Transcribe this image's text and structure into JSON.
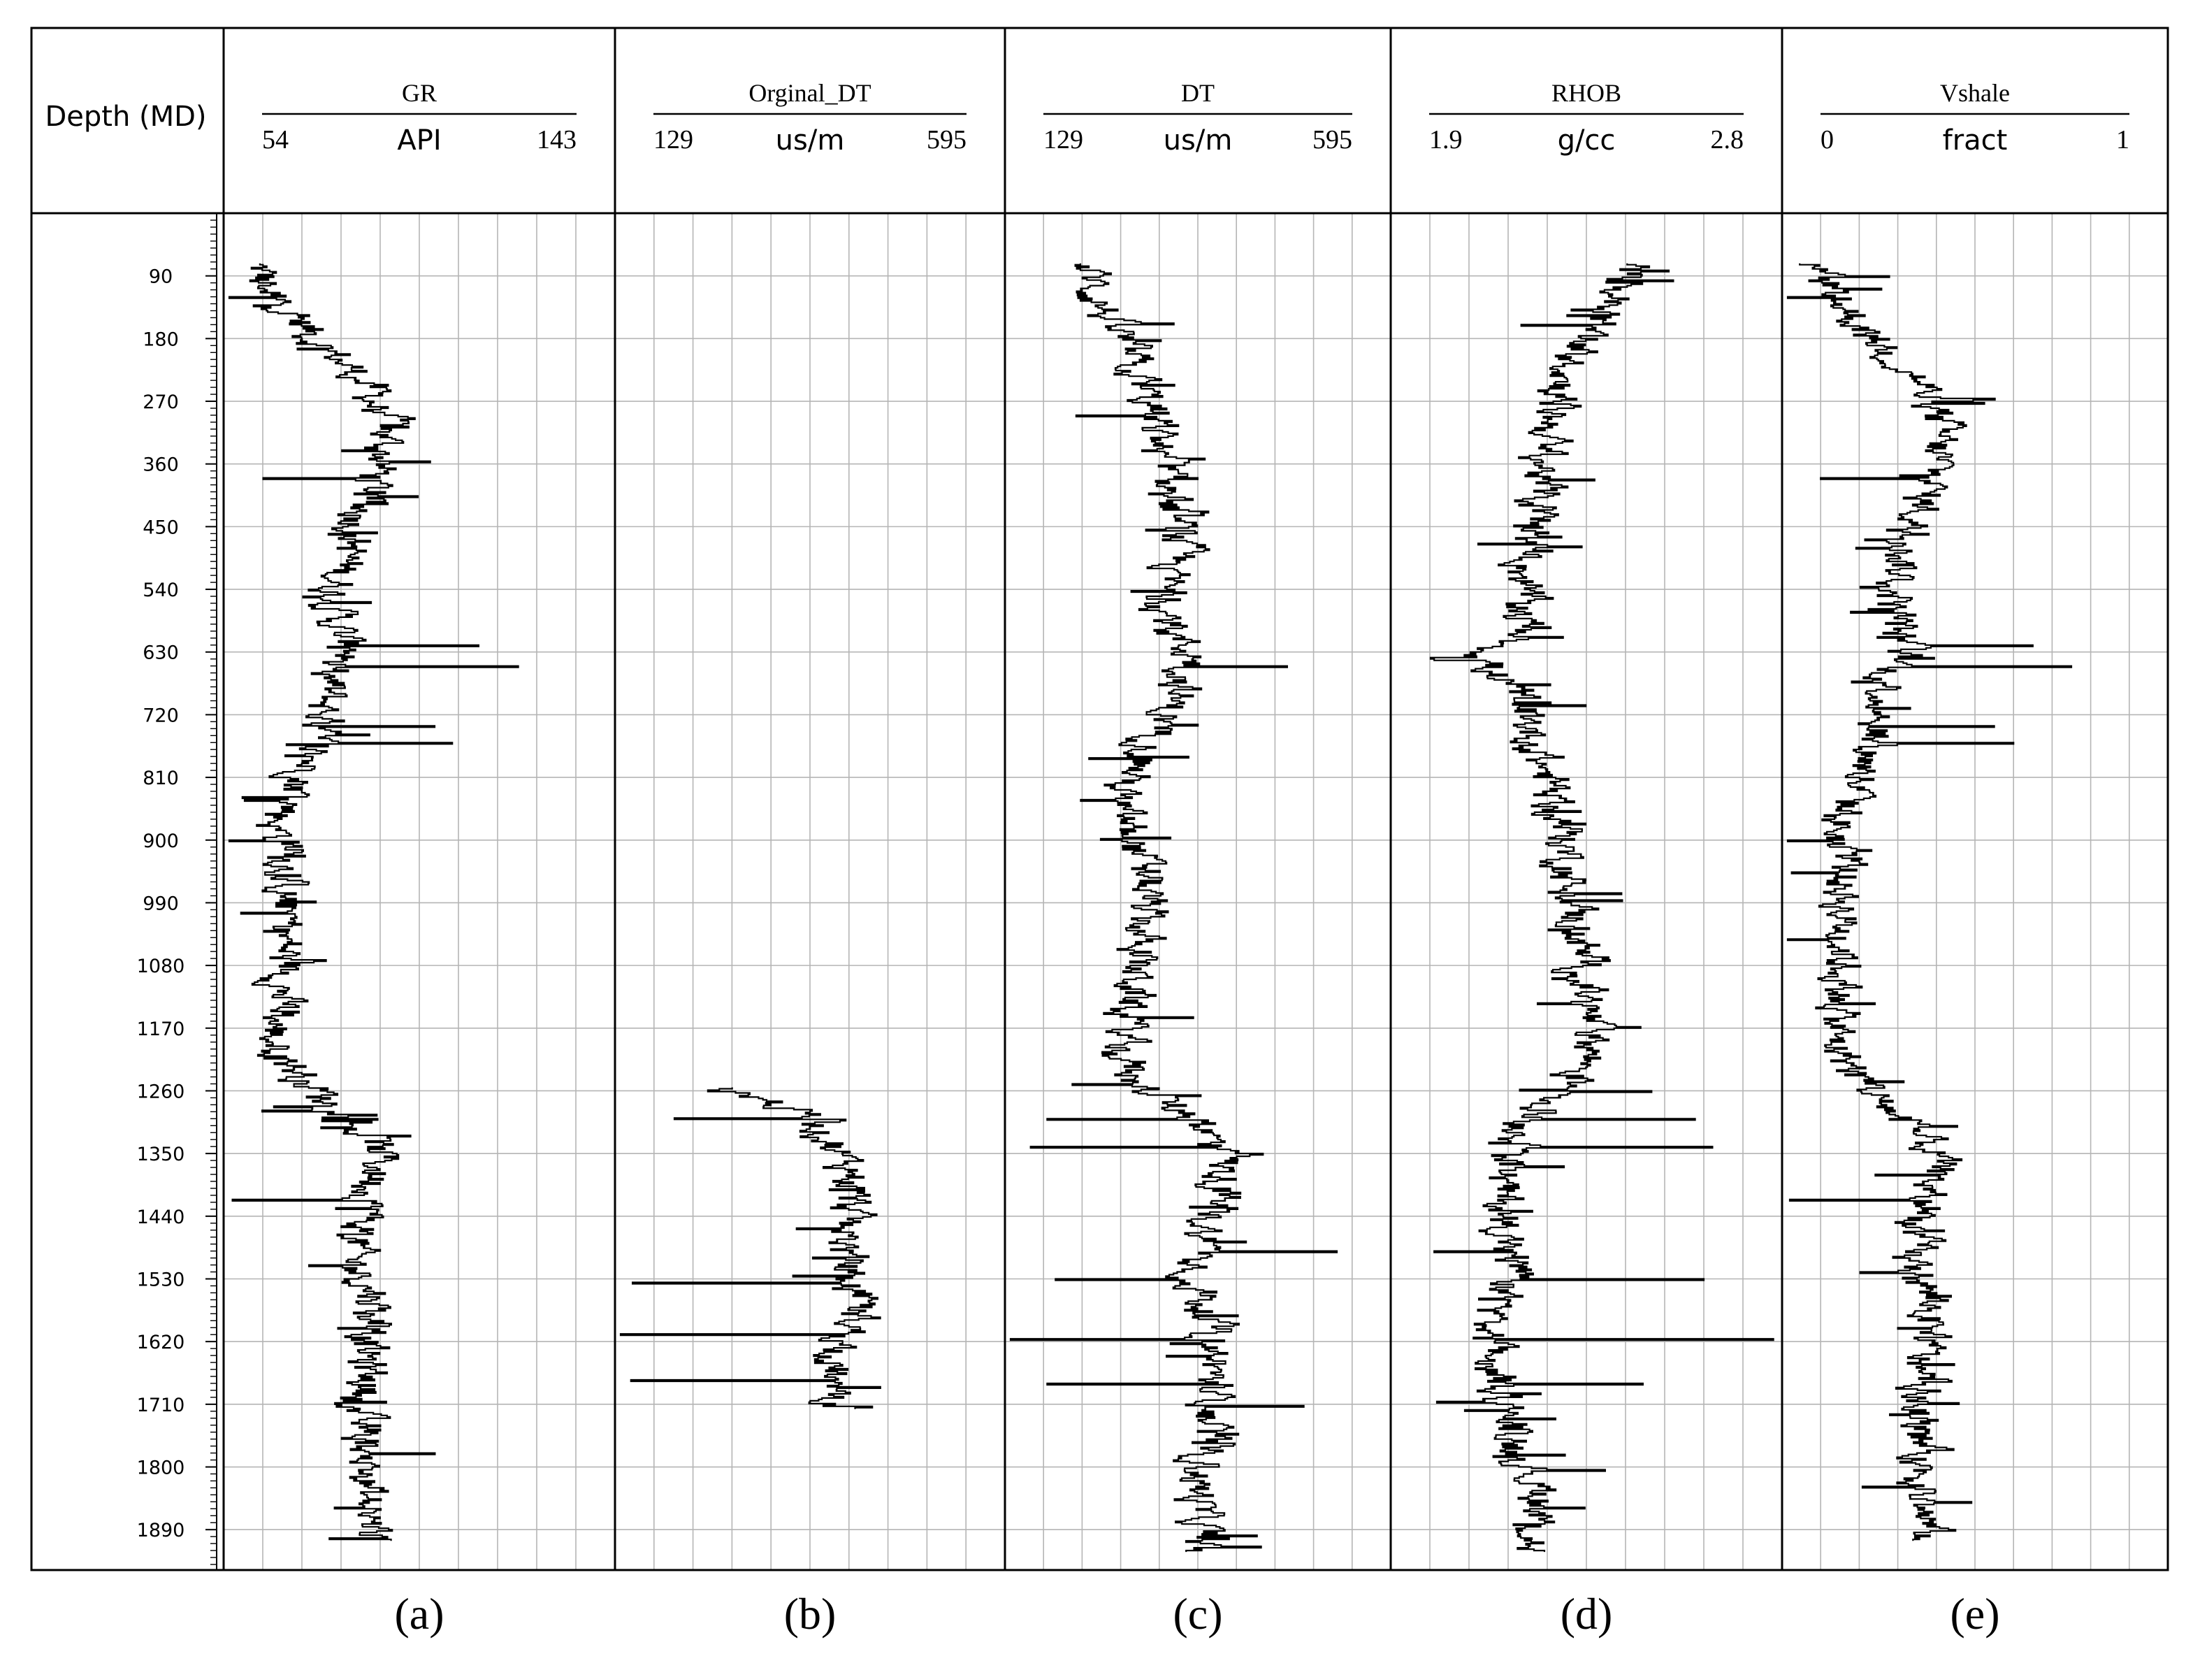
{
  "chart_data": {
    "type": "line",
    "depth_axis": {
      "title": "Depth (MD)",
      "ticks": [
        90,
        180,
        270,
        360,
        450,
        540,
        630,
        720,
        810,
        900,
        990,
        1080,
        1170,
        1260,
        1350,
        1440,
        1530,
        1620,
        1710,
        1800,
        1890
      ],
      "range": [
        0,
        1948
      ],
      "direction": "downward"
    },
    "grid": true,
    "tracks": [
      {
        "name": "GR",
        "unit": "API",
        "min": 54,
        "max": 143,
        "min_label": "54",
        "max_label": "143",
        "panel_label": "(a)",
        "depth_start": 72,
        "depth_end": 1904,
        "profile": [
          [
            72,
            61
          ],
          [
            120,
            66
          ],
          [
            180,
            75
          ],
          [
            240,
            86
          ],
          [
            300,
            91
          ],
          [
            360,
            90
          ],
          [
            420,
            86
          ],
          [
            480,
            83
          ],
          [
            540,
            79
          ],
          [
            600,
            80
          ],
          [
            630,
            82
          ],
          [
            660,
            78
          ],
          [
            720,
            77
          ],
          [
            780,
            74
          ],
          [
            840,
            70
          ],
          [
            880,
            66
          ],
          [
            920,
            69
          ],
          [
            960,
            68
          ],
          [
            1020,
            68
          ],
          [
            1080,
            68
          ],
          [
            1140,
            67
          ],
          [
            1180,
            65
          ],
          [
            1240,
            72
          ],
          [
            1300,
            82
          ],
          [
            1350,
            90
          ],
          [
            1400,
            88
          ],
          [
            1440,
            86
          ],
          [
            1500,
            83
          ],
          [
            1560,
            89
          ],
          [
            1620,
            86
          ],
          [
            1680,
            87
          ],
          [
            1720,
            84
          ],
          [
            1780,
            87
          ],
          [
            1850,
            86
          ],
          [
            1904,
            88
          ]
        ],
        "spikes": [
          [
            95,
            60
          ],
          [
            120,
            54
          ],
          [
            380,
            63
          ],
          [
            620,
            112
          ],
          [
            650,
            121
          ],
          [
            735,
            102
          ],
          [
            760,
            106
          ],
          [
            900,
            55
          ],
          [
            1415,
            56
          ],
          [
            1600,
            80
          ]
        ]
      },
      {
        "name": "Orginal_DT",
        "unit": "us/m",
        "min": 129,
        "max": 595,
        "min_label": "129",
        "max_label": "595",
        "panel_label": "(b)",
        "depth_start": 1255,
        "depth_end": 1715,
        "profile": [
          [
            1255,
            270
          ],
          [
            1300,
            370
          ],
          [
            1340,
            390
          ],
          [
            1380,
            415
          ],
          [
            1420,
            410
          ],
          [
            1460,
            405
          ],
          [
            1500,
            405
          ],
          [
            1540,
            410
          ],
          [
            1580,
            420
          ],
          [
            1620,
            405
          ],
          [
            1660,
            390
          ],
          [
            1700,
            390
          ],
          [
            1715,
            395
          ]
        ],
        "spikes": [
          [
            1300,
            200
          ],
          [
            1535,
            150
          ],
          [
            1610,
            135
          ],
          [
            1675,
            148
          ],
          [
            1260,
            240
          ]
        ]
      },
      {
        "name": "DT",
        "unit": "us/m",
        "min": 129,
        "max": 595,
        "min_label": "129",
        "max_label": "595",
        "panel_label": "(c)",
        "depth_start": 72,
        "depth_end": 1920,
        "profile": [
          [
            72,
            230
          ],
          [
            120,
            240
          ],
          [
            180,
            270
          ],
          [
            240,
            290
          ],
          [
            300,
            310
          ],
          [
            360,
            320
          ],
          [
            420,
            330
          ],
          [
            480,
            340
          ],
          [
            540,
            320
          ],
          [
            600,
            330
          ],
          [
            640,
            360
          ],
          [
            700,
            330
          ],
          [
            780,
            300
          ],
          [
            840,
            260
          ],
          [
            900,
            285
          ],
          [
            960,
            300
          ],
          [
            1020,
            295
          ],
          [
            1080,
            290
          ],
          [
            1140,
            280
          ],
          [
            1200,
            270
          ],
          [
            1255,
            295
          ],
          [
            1300,
            360
          ],
          [
            1350,
            390
          ],
          [
            1400,
            390
          ],
          [
            1460,
            370
          ],
          [
            1530,
            360
          ],
          [
            1600,
            380
          ],
          [
            1660,
            380
          ],
          [
            1720,
            380
          ],
          [
            1780,
            370
          ],
          [
            1840,
            360
          ],
          [
            1904,
            370
          ],
          [
            1920,
            365
          ]
        ],
        "spikes": [
          [
            290,
            215
          ],
          [
            650,
            470
          ],
          [
            1300,
            180
          ],
          [
            1340,
            160
          ],
          [
            1490,
            530
          ],
          [
            1530,
            190
          ],
          [
            1615,
            130
          ],
          [
            1680,
            180
          ],
          [
            1712,
            490
          ]
        ]
      },
      {
        "name": "RHOB",
        "unit": "g/cc",
        "min": 1.9,
        "max": 2.8,
        "min_label": "1.9",
        "max_label": "2.8",
        "panel_label": "(d)",
        "depth_start": 72,
        "depth_end": 1920,
        "profile": [
          [
            72,
            2.45
          ],
          [
            120,
            2.42
          ],
          [
            180,
            2.35
          ],
          [
            240,
            2.3
          ],
          [
            300,
            2.27
          ],
          [
            360,
            2.25
          ],
          [
            420,
            2.24
          ],
          [
            480,
            2.22
          ],
          [
            540,
            2.2
          ],
          [
            600,
            2.22
          ],
          [
            640,
            2.1
          ],
          [
            700,
            2.2
          ],
          [
            780,
            2.24
          ],
          [
            840,
            2.28
          ],
          [
            900,
            2.3
          ],
          [
            960,
            2.31
          ],
          [
            1020,
            2.33
          ],
          [
            1080,
            2.34
          ],
          [
            1140,
            2.35
          ],
          [
            1200,
            2.37
          ],
          [
            1255,
            2.32
          ],
          [
            1300,
            2.22
          ],
          [
            1350,
            2.18
          ],
          [
            1400,
            2.15
          ],
          [
            1460,
            2.17
          ],
          [
            1530,
            2.18
          ],
          [
            1600,
            2.12
          ],
          [
            1660,
            2.13
          ],
          [
            1720,
            2.17
          ],
          [
            1780,
            2.2
          ],
          [
            1840,
            2.25
          ],
          [
            1904,
            2.23
          ],
          [
            1920,
            2.22
          ]
        ],
        "spikes": [
          [
            95,
            2.55
          ],
          [
            160,
            2.2
          ],
          [
            1260,
            2.5
          ],
          [
            1300,
            2.6
          ],
          [
            1340,
            2.64
          ],
          [
            1490,
            2.0
          ],
          [
            1530,
            2.62
          ],
          [
            1615,
            2.78
          ],
          [
            1680,
            2.48
          ],
          [
            640,
            2.0
          ]
        ]
      },
      {
        "name": "Vshale",
        "unit": "fract",
        "min": 0,
        "max": 1,
        "min_label": "0",
        "max_label": "1",
        "panel_label": "(e)",
        "depth_start": 72,
        "depth_end": 1904,
        "profile": [
          [
            72,
            0.08
          ],
          [
            120,
            0.14
          ],
          [
            180,
            0.24
          ],
          [
            240,
            0.36
          ],
          [
            300,
            0.41
          ],
          [
            360,
            0.4
          ],
          [
            420,
            0.36
          ],
          [
            480,
            0.33
          ],
          [
            540,
            0.29
          ],
          [
            600,
            0.3
          ],
          [
            630,
            0.32
          ],
          [
            660,
            0.28
          ],
          [
            720,
            0.26
          ],
          [
            780,
            0.23
          ],
          [
            840,
            0.18
          ],
          [
            880,
            0.14
          ],
          [
            920,
            0.17
          ],
          [
            960,
            0.16
          ],
          [
            1020,
            0.16
          ],
          [
            1080,
            0.16
          ],
          [
            1140,
            0.15
          ],
          [
            1180,
            0.13
          ],
          [
            1240,
            0.2
          ],
          [
            1300,
            0.31
          ],
          [
            1350,
            0.4
          ],
          [
            1400,
            0.38
          ],
          [
            1440,
            0.36
          ],
          [
            1500,
            0.33
          ],
          [
            1560,
            0.39
          ],
          [
            1620,
            0.36
          ],
          [
            1680,
            0.37
          ],
          [
            1720,
            0.34
          ],
          [
            1780,
            0.37
          ],
          [
            1850,
            0.36
          ],
          [
            1904,
            0.38
          ]
        ],
        "spikes": [
          [
            95,
            0.07
          ],
          [
            120,
            0.0
          ],
          [
            380,
            0.1
          ],
          [
            620,
            0.65
          ],
          [
            650,
            0.75
          ],
          [
            735,
            0.55
          ],
          [
            760,
            0.6
          ],
          [
            900,
            0.01
          ],
          [
            1415,
            0.02
          ],
          [
            1600,
            0.3
          ]
        ]
      }
    ]
  }
}
